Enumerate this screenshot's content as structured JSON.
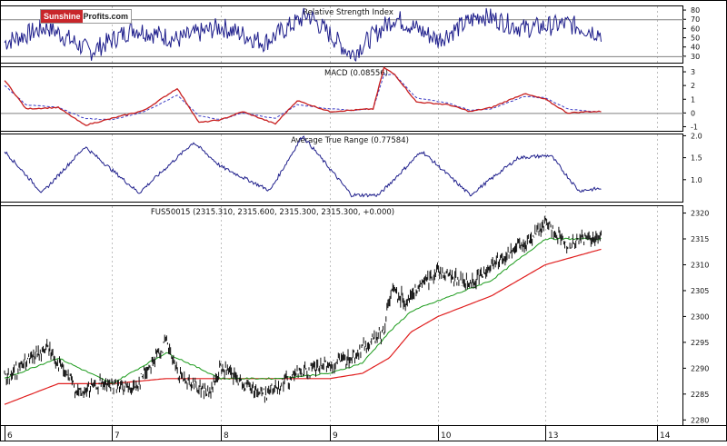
{
  "logo": {
    "part1": "Sunshine",
    "part2": "Profits.com"
  },
  "colors": {
    "frame": "#000000",
    "grid": "#c0c0c0",
    "indicator": "#1f1f8c",
    "signal_red": "#c81e1e",
    "macd_dash": "#3b3bc4",
    "ma_green": "#1a9a1a",
    "ma_red": "#e01e1e",
    "price": "#111111"
  },
  "x_axis": {
    "labels": [
      "6",
      "7",
      "8",
      "9",
      "10",
      "13",
      "14"
    ]
  },
  "panels": {
    "rsi": {
      "title": "Relative Strength Index",
      "ticks": [
        "80",
        "70",
        "60",
        "50",
        "40",
        "30"
      ],
      "levels": [
        70,
        30
      ]
    },
    "macd": {
      "title": "MACD (0.08556)",
      "ticks": [
        "3",
        "2",
        "1",
        "0",
        "-1"
      ],
      "levels": [
        0
      ]
    },
    "atr": {
      "title": "Average True Range (0.77584)",
      "ticks": [
        "2.0",
        "1.5",
        "1.0"
      ]
    },
    "price": {
      "title": "FUS50015 (2315.310, 2315.600, 2315.300, 2315.300, +0.000)",
      "ticks": [
        "2320",
        "2315",
        "2310",
        "2305",
        "2300",
        "2295",
        "2290",
        "2285",
        "2280"
      ]
    }
  },
  "chart_data": [
    {
      "type": "line",
      "title": "Relative Strength Index",
      "ylim": [
        23,
        85
      ],
      "reference_lines": [
        70,
        30
      ],
      "x": [
        0,
        0.4,
        0.8,
        1.2,
        1.6,
        2.0,
        2.4,
        2.8,
        3.2,
        3.6,
        4.0,
        4.4,
        4.8,
        5.2,
        5.5
      ],
      "values": [
        45,
        62,
        35,
        60,
        48,
        62,
        45,
        75,
        32,
        72,
        48,
        75,
        60,
        65,
        55
      ]
    },
    {
      "type": "line",
      "title": "MACD (0.08556)",
      "ylim": [
        -1.3,
        3.4
      ],
      "reference_lines": [
        0
      ],
      "series": [
        {
          "x": [
            0,
            0.2,
            0.5,
            0.75,
            1.0,
            1.3,
            1.6,
            1.8,
            2.0,
            2.2,
            2.5,
            2.7,
            3.0,
            3.2,
            3.4,
            3.5,
            3.6,
            3.8,
            4.1,
            4.3,
            4.5,
            4.8,
            5.0,
            5.2,
            5.4,
            5.5
          ],
          "values": [
            2.4,
            0.3,
            0.4,
            -0.9,
            -0.4,
            0.2,
            1.8,
            -0.7,
            -0.5,
            0.1,
            -0.8,
            0.9,
            0.1,
            0.2,
            0.3,
            3.3,
            2.8,
            0.8,
            0.6,
            0.1,
            0.4,
            1.4,
            1.0,
            0.0,
            0.1,
            0.1
          ]
        },
        {
          "x": [
            0,
            0.2,
            0.5,
            0.75,
            1.0,
            1.3,
            1.6,
            1.8,
            2.0,
            2.2,
            2.5,
            2.7,
            3.0,
            3.2,
            3.4,
            3.5,
            3.6,
            3.8,
            4.1,
            4.3,
            4.5,
            4.8,
            5.0,
            5.2,
            5.4,
            5.5
          ],
          "values": [
            2.0,
            0.6,
            0.4,
            -0.4,
            -0.5,
            0.1,
            1.3,
            -0.2,
            -0.5,
            0.0,
            -0.4,
            0.6,
            0.3,
            0.2,
            0.3,
            2.8,
            2.8,
            1.1,
            0.7,
            0.2,
            0.3,
            1.2,
            1.1,
            0.3,
            0.1,
            0.1
          ]
        }
      ]
    },
    {
      "type": "line",
      "title": "Average True Range (0.77584)",
      "ylim": [
        0.5,
        2.05
      ],
      "x": [
        0,
        0.35,
        0.75,
        1.25,
        1.75,
        2.0,
        2.45,
        2.75,
        3.2,
        3.45,
        3.85,
        4.3,
        4.75,
        5.05,
        5.3,
        5.5
      ],
      "values": [
        1.65,
        0.7,
        1.75,
        0.7,
        1.85,
        1.3,
        0.75,
        2.0,
        0.65,
        0.65,
        1.65,
        0.65,
        1.5,
        1.55,
        0.75,
        0.8
      ]
    },
    {
      "type": "line",
      "title": "FUS50015 (2315.310, 2315.600, 2315.300, 2315.300, +0.000)",
      "ylim": [
        2279,
        2321.5
      ],
      "series": [
        {
          "x": [
            0,
            0.4,
            0.7,
            0.9,
            1.2,
            1.5,
            1.6,
            1.9,
            2.0,
            2.2,
            2.4,
            2.7,
            2.9,
            3.2,
            3.5,
            3.55,
            3.6,
            3.7,
            4.0,
            4.3,
            4.5,
            4.8,
            5.0,
            5.1,
            5.2,
            5.3,
            5.5
          ],
          "values": [
            2288,
            2294,
            2285,
            2287,
            2286,
            2295,
            2289,
            2285,
            2290,
            2287,
            2285,
            2289,
            2290,
            2292,
            2297,
            2304,
            2305,
            2303,
            2309,
            2306,
            2310,
            2314,
            2318,
            2316,
            2314,
            2315,
            2315.3
          ]
        },
        {
          "x": [
            0,
            0.5,
            1.0,
            1.5,
            2.0,
            2.5,
            3.0,
            3.3,
            3.55,
            3.75,
            4.0,
            4.5,
            4.75,
            5.0,
            5.2,
            5.5
          ],
          "values": [
            2288,
            2292,
            2287,
            2293,
            2288,
            2288,
            2289,
            2291,
            2297,
            2301,
            2303,
            2307,
            2311,
            2315,
            2315,
            2315
          ]
        },
        {
          "x": [
            0,
            0.5,
            1.0,
            1.5,
            2.0,
            2.5,
            3.0,
            3.3,
            3.55,
            3.75,
            4.0,
            4.5,
            4.75,
            5.0,
            5.5
          ],
          "values": [
            2283,
            2287,
            2287,
            2288,
            2288,
            2288,
            2288,
            2289,
            2292,
            2297,
            2300,
            2304,
            2307,
            2310,
            2313
          ]
        }
      ]
    }
  ]
}
